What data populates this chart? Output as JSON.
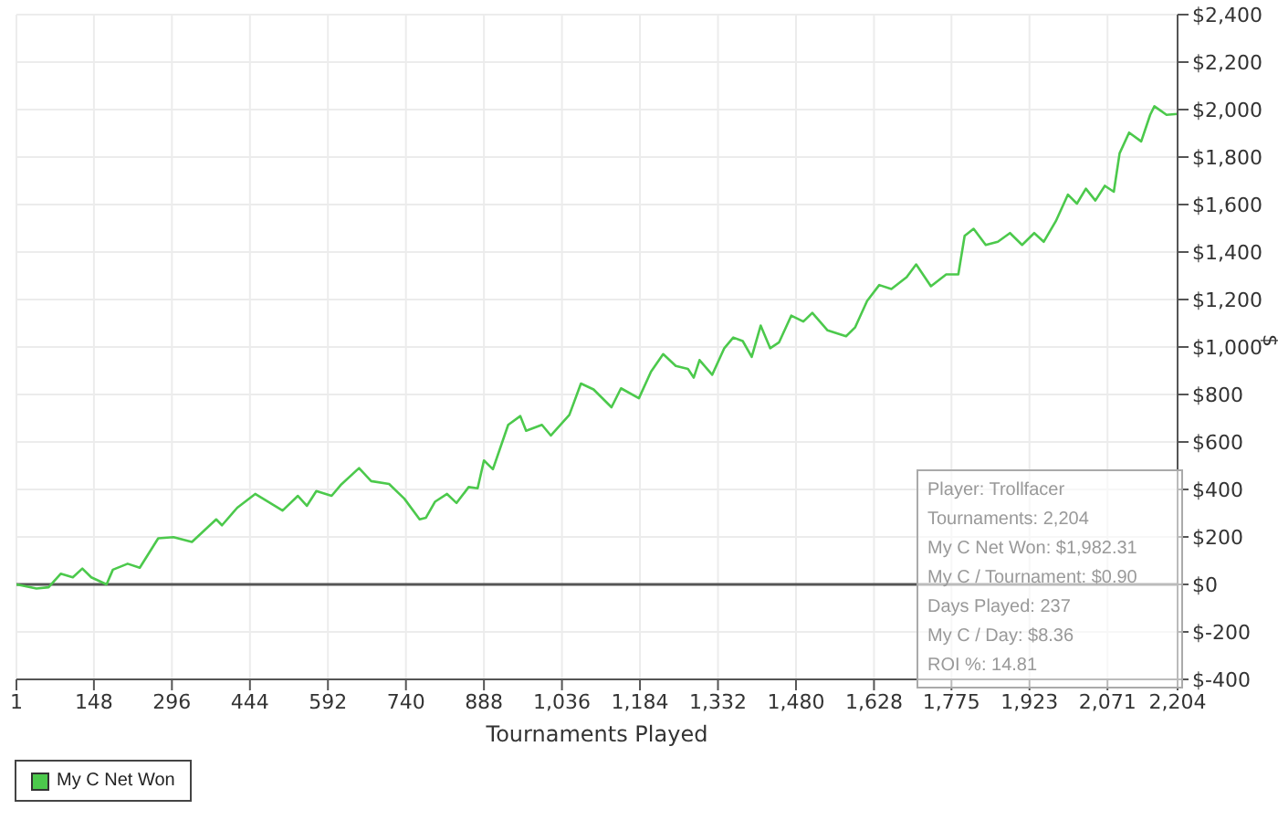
{
  "chart_data": {
    "type": "line",
    "xlabel": "Tournaments Played",
    "ylabel": "$",
    "x": [
      1,
      39,
      62,
      85,
      108,
      126,
      143,
      172,
      184,
      212,
      235,
      270,
      299,
      334,
      380,
      391,
      420,
      454,
      506,
      535,
      552,
      570,
      599,
      616,
      651,
      674,
      708,
      737,
      766,
      778,
      795,
      818,
      836,
      859,
      876,
      888,
      905,
      934,
      957,
      968,
      998,
      1015,
      1050,
      1072,
      1096,
      1130,
      1148,
      1182,
      1205,
      1228,
      1252,
      1275,
      1286,
      1297,
      1321,
      1344,
      1361,
      1379,
      1396,
      1413,
      1431,
      1448,
      1471,
      1494,
      1511,
      1540,
      1575,
      1592,
      1615,
      1638,
      1661,
      1690,
      1708,
      1736,
      1765,
      1788,
      1800,
      1817,
      1840,
      1863,
      1886,
      1909,
      1932,
      1950,
      1973,
      1996,
      2013,
      2030,
      2048,
      2066,
      2083,
      2094,
      2112,
      2135,
      2152,
      2160,
      2183,
      2204
    ],
    "series": [
      {
        "name": "My C Net Won",
        "color": "#4cc94c",
        "values": [
          0,
          -17,
          -12,
          45,
          30,
          67,
          30,
          0,
          62,
          87,
          70,
          194,
          199,
          179,
          274,
          249,
          323,
          381,
          311,
          373,
          331,
          393,
          373,
          418,
          490,
          435,
          423,
          361,
          274,
          281,
          348,
          381,
          343,
          410,
          405,
          522,
          485,
          672,
          709,
          647,
          672,
          627,
          714,
          846,
          821,
          746,
          826,
          784,
          896,
          970,
          920,
          908,
          871,
          945,
          883,
          995,
          1040,
          1025,
          958,
          1090,
          995,
          1020,
          1132,
          1107,
          1144,
          1070,
          1045,
          1082,
          1194,
          1261,
          1244,
          1294,
          1348,
          1256,
          1306,
          1306,
          1468,
          1498,
          1430,
          1443,
          1480,
          1430,
          1480,
          1443,
          1530,
          1642,
          1604,
          1667,
          1617,
          1679,
          1654,
          1816,
          1903,
          1866,
          1978,
          2014,
          1978,
          1982
        ]
      }
    ],
    "xlim": [
      1,
      2204
    ],
    "xticks": [
      {
        "value": 1,
        "label": "1"
      },
      {
        "value": 148,
        "label": "148"
      },
      {
        "value": 296,
        "label": "296"
      },
      {
        "value": 444,
        "label": "444"
      },
      {
        "value": 592,
        "label": "592"
      },
      {
        "value": 740,
        "label": "740"
      },
      {
        "value": 888,
        "label": "888"
      },
      {
        "value": 1036,
        "label": "1,036"
      },
      {
        "value": 1184,
        "label": "1,184"
      },
      {
        "value": 1332,
        "label": "1,332"
      },
      {
        "value": 1480,
        "label": "1,480"
      },
      {
        "value": 1628,
        "label": "1,628"
      },
      {
        "value": 1775,
        "label": "1,775"
      },
      {
        "value": 1923,
        "label": "1,923"
      },
      {
        "value": 2071,
        "label": "2,071"
      },
      {
        "value": 2204,
        "label": "2,204"
      }
    ],
    "ylim": [
      -400,
      2400
    ],
    "yticks": [
      {
        "value": -400,
        "label": "$-400"
      },
      {
        "value": -200,
        "label": "$-200"
      },
      {
        "value": 0,
        "label": "$0"
      },
      {
        "value": 200,
        "label": "$200"
      },
      {
        "value": 400,
        "label": "$400"
      },
      {
        "value": 600,
        "label": "$600"
      },
      {
        "value": 800,
        "label": "$800"
      },
      {
        "value": 1000,
        "label": "$1,000"
      },
      {
        "value": 1200,
        "label": "$1,200"
      },
      {
        "value": 1400,
        "label": "$1,400"
      },
      {
        "value": 1600,
        "label": "$1,600"
      },
      {
        "value": 1800,
        "label": "$1,800"
      },
      {
        "value": 2000,
        "label": "$2,000"
      },
      {
        "value": 2200,
        "label": "$2,200"
      },
      {
        "value": 2400,
        "label": "$2,400"
      }
    ],
    "ref_lines": [
      {
        "axis": "y",
        "value": 0,
        "color": "#555555"
      }
    ],
    "annotations": [
      "Player: Trollfacer",
      "Tournaments: 2,204",
      "My C Net Won: $1,982.31",
      "My C / Tournament: $0.90",
      "Days Played: 237",
      "My C / Day: $8.36",
      "ROI %: 14.81"
    ],
    "grid": true,
    "legend": "bottom left",
    "marker": "none",
    "line_style": "solid"
  }
}
